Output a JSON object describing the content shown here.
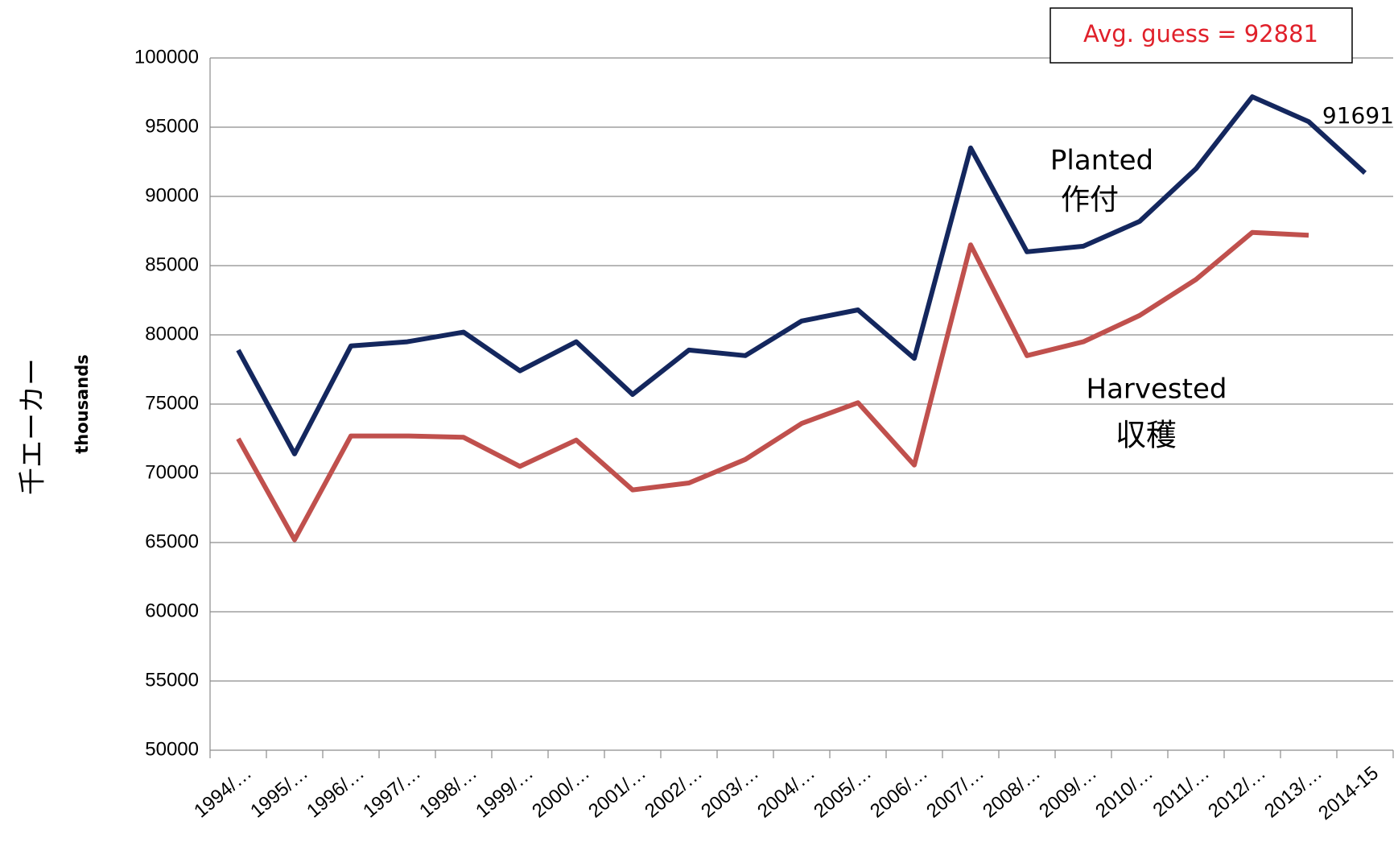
{
  "chart_data": {
    "type": "line",
    "y_label": "thousands",
    "y_unit_label": "千エーカー",
    "annotations": [
      "Avg. guess = 92881",
      "Planted",
      "作付",
      "Harvested",
      "収穫"
    ],
    "categories": [
      "1994/…",
      "1995/…",
      "1996/…",
      "1997/…",
      "1998/…",
      "1999/…",
      "2000/…",
      "2001/…",
      "2002/…",
      "2003/…",
      "2004/…",
      "2005/…",
      "2006/…",
      "2007/…",
      "2008/…",
      "2009/…",
      "2010/…",
      "2011/…",
      "2012/…",
      "2013/…",
      "2014-15"
    ],
    "series": [
      {
        "name": "Planted",
        "color": "#14275e",
        "values": [
          78900,
          71400,
          79200,
          79500,
          80200,
          77400,
          79500,
          75700,
          78900,
          78500,
          81000,
          81800,
          78300,
          93500,
          86000,
          86400,
          88200,
          92000,
          97200,
          95400,
          91691
        ]
      },
      {
        "name": "Harvested",
        "color": "#c0504d",
        "values": [
          72500,
          65200,
          72700,
          72700,
          72600,
          70500,
          72400,
          68800,
          69300,
          71000,
          73600,
          75100,
          70600,
          86500,
          78500,
          79500,
          81400,
          84000,
          87400,
          87200,
          null
        ]
      }
    ],
    "ylim": [
      50000,
      100000
    ],
    "yticks": [
      50000,
      55000,
      60000,
      65000,
      70000,
      75000,
      80000,
      85000,
      90000,
      95000,
      100000
    ],
    "grid": true
  }
}
